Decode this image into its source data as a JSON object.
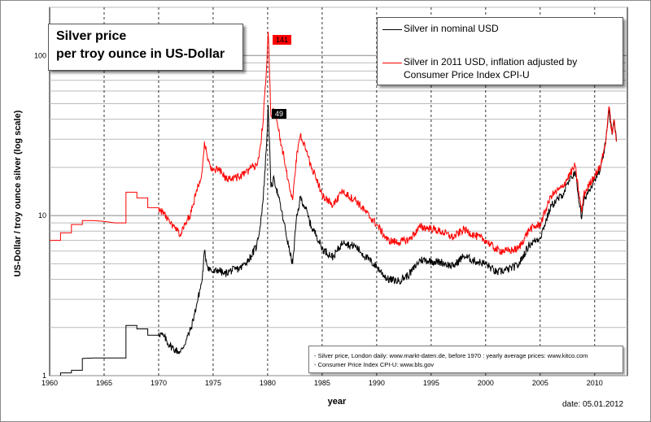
{
  "title": {
    "line1": "Silver price",
    "line2": "per troy ounce in US-Dollar"
  },
  "legend": [
    {
      "label": "Silver in nominal USD",
      "color": "#000000"
    },
    {
      "label_line1": "Silver in 2011 USD, inflation adjusted by",
      "label_line2": "Consumer Price Index CPI-U",
      "color": "#ff0000"
    }
  ],
  "sources": [
    "- Silver price, London daily: www.markt-daten.de,  before 1970 :  yearly  average prices: www.kitco.com",
    "- Consumer Price Index CPI-U: www.bls.gov"
  ],
  "date_note": "date:  05.01.2012",
  "peak_labels": {
    "inflation_adjusted": "141",
    "nominal": "49"
  },
  "chart_data": {
    "type": "line",
    "xlabel": "year",
    "ylabel": "US-Dollar / troy ounce silver (log scale)",
    "xlim": [
      1960,
      2013
    ],
    "ylim": [
      1,
      200
    ],
    "y_scale": "log",
    "x_ticks": [
      1960,
      1965,
      1970,
      1975,
      1980,
      1985,
      1990,
      1995,
      2000,
      2005,
      2010
    ],
    "y_ticks": [
      1,
      10,
      100
    ],
    "grid": true,
    "legend_position": "top-right",
    "series": [
      {
        "name": "Silver in nominal USD",
        "color": "#000000",
        "points": [
          [
            1960,
            0.91
          ],
          [
            1961,
            0.92
          ],
          [
            1961,
            1.04
          ],
          [
            1962,
            1.04
          ],
          [
            1962,
            1.08
          ],
          [
            1963,
            1.08
          ],
          [
            1963,
            1.28
          ],
          [
            1964,
            1.29
          ],
          [
            1965,
            1.29
          ],
          [
            1966,
            1.29
          ],
          [
            1967,
            1.29
          ],
          [
            1967,
            2.06
          ],
          [
            1968,
            2.06
          ],
          [
            1968,
            1.96
          ],
          [
            1969,
            1.96
          ],
          [
            1969,
            1.79
          ],
          [
            1970,
            1.79
          ],
          [
            1970,
            1.85
          ],
          [
            1970.5,
            1.75
          ],
          [
            1971,
            1.55
          ],
          [
            1971.5,
            1.45
          ],
          [
            1972,
            1.4
          ],
          [
            1972.5,
            1.65
          ],
          [
            1973,
            2.0
          ],
          [
            1973.5,
            2.8
          ],
          [
            1974,
            4.0
          ],
          [
            1974.2,
            6.0
          ],
          [
            1974.5,
            4.8
          ],
          [
            1975,
            4.4
          ],
          [
            1975.5,
            4.6
          ],
          [
            1976,
            4.3
          ],
          [
            1976.5,
            4.5
          ],
          [
            1977,
            4.6
          ],
          [
            1977.5,
            4.7
          ],
          [
            1978,
            5.1
          ],
          [
            1978.5,
            5.6
          ],
          [
            1979,
            6.5
          ],
          [
            1979.3,
            8.5
          ],
          [
            1979.6,
            13.0
          ],
          [
            1979.9,
            28.0
          ],
          [
            1980.05,
            49.0
          ],
          [
            1980.3,
            15.0
          ],
          [
            1980.6,
            17.0
          ],
          [
            1981,
            13.0
          ],
          [
            1981.5,
            9.0
          ],
          [
            1982,
            6.0
          ],
          [
            1982.3,
            5.0
          ],
          [
            1982.6,
            9.0
          ],
          [
            1983,
            13.0
          ],
          [
            1983.5,
            11.0
          ],
          [
            1984,
            8.5
          ],
          [
            1984.5,
            7.5
          ],
          [
            1985,
            6.2
          ],
          [
            1986,
            5.5
          ],
          [
            1987,
            7.0
          ],
          [
            1987.5,
            6.5
          ],
          [
            1988,
            6.5
          ],
          [
            1989,
            5.5
          ],
          [
            1990,
            4.8
          ],
          [
            1991,
            4.0
          ],
          [
            1992,
            3.9
          ],
          [
            1993,
            4.3
          ],
          [
            1994,
            5.3
          ],
          [
            1995,
            5.2
          ],
          [
            1996,
            5.1
          ],
          [
            1997,
            4.8
          ],
          [
            1998,
            5.6
          ],
          [
            1999,
            5.2
          ],
          [
            2000,
            5.0
          ],
          [
            2001,
            4.4
          ],
          [
            2002,
            4.6
          ],
          [
            2003,
            4.9
          ],
          [
            2004,
            6.6
          ],
          [
            2005,
            7.3
          ],
          [
            2006,
            11.5
          ],
          [
            2007,
            13.4
          ],
          [
            2008.2,
            19.0
          ],
          [
            2008.8,
            9.5
          ],
          [
            2009,
            12.5
          ],
          [
            2010,
            17.0
          ],
          [
            2010.5,
            19.0
          ],
          [
            2011,
            28.0
          ],
          [
            2011.3,
            47.0
          ],
          [
            2011.6,
            32.0
          ],
          [
            2011.8,
            39.0
          ],
          [
            2012,
            29.0
          ]
        ]
      },
      {
        "name": "Silver in 2011 USD, inflation adjusted by Consumer Price Index CPI-U",
        "color": "#ff0000",
        "points": [
          [
            1960,
            7.0
          ],
          [
            1961,
            7.0
          ],
          [
            1961,
            7.8
          ],
          [
            1962,
            7.8
          ],
          [
            1962,
            8.8
          ],
          [
            1963,
            8.8
          ],
          [
            1963,
            9.3
          ],
          [
            1964,
            9.3
          ],
          [
            1965,
            9.2
          ],
          [
            1966,
            9.0
          ],
          [
            1967,
            9.0
          ],
          [
            1967,
            14.0
          ],
          [
            1968,
            14.0
          ],
          [
            1968,
            12.9
          ],
          [
            1969,
            12.9
          ],
          [
            1969,
            11.2
          ],
          [
            1970,
            11.2
          ],
          [
            1970,
            11.0
          ],
          [
            1970.5,
            10.3
          ],
          [
            1971,
            9.0
          ],
          [
            1971.5,
            8.3
          ],
          [
            1972,
            7.6
          ],
          [
            1972.5,
            9.0
          ],
          [
            1973,
            10.5
          ],
          [
            1973.5,
            14.5
          ],
          [
            1974,
            19.0
          ],
          [
            1974.2,
            29.0
          ],
          [
            1974.5,
            22.0
          ],
          [
            1975,
            19.0
          ],
          [
            1975.5,
            19.5
          ],
          [
            1976,
            17.5
          ],
          [
            1976.5,
            17.0
          ],
          [
            1977,
            17.3
          ],
          [
            1977.5,
            17.5
          ],
          [
            1978,
            18.5
          ],
          [
            1978.5,
            20.0
          ],
          [
            1979,
            20.5
          ],
          [
            1979.3,
            26.0
          ],
          [
            1979.6,
            40.0
          ],
          [
            1979.9,
            85.0
          ],
          [
            1980.05,
            141.0
          ],
          [
            1980.3,
            42.0
          ],
          [
            1980.6,
            46.0
          ],
          [
            1981,
            34.0
          ],
          [
            1981.5,
            23.0
          ],
          [
            1982,
            15.0
          ],
          [
            1982.3,
            12.5
          ],
          [
            1982.6,
            22.0
          ],
          [
            1983,
            32.0
          ],
          [
            1983.5,
            26.0
          ],
          [
            1984,
            20.0
          ],
          [
            1984.5,
            17.0
          ],
          [
            1985,
            13.5
          ],
          [
            1986,
            11.5
          ],
          [
            1987,
            14.5
          ],
          [
            1987.5,
            13.0
          ],
          [
            1988,
            12.7
          ],
          [
            1989,
            10.5
          ],
          [
            1990,
            8.8
          ],
          [
            1991,
            7.0
          ],
          [
            1992,
            6.8
          ],
          [
            1993,
            7.1
          ],
          [
            1994,
            8.5
          ],
          [
            1995,
            8.3
          ],
          [
            1996,
            7.9
          ],
          [
            1997,
            7.3
          ],
          [
            1998,
            8.2
          ],
          [
            1999,
            7.5
          ],
          [
            2000,
            7.0
          ],
          [
            2001,
            6.1
          ],
          [
            2002,
            6.0
          ],
          [
            2003,
            6.2
          ],
          [
            2004,
            8.2
          ],
          [
            2005,
            8.8
          ],
          [
            2006,
            13.3
          ],
          [
            2007,
            15.0
          ],
          [
            2008.2,
            20.5
          ],
          [
            2008.8,
            10.5
          ],
          [
            2009,
            13.5
          ],
          [
            2010,
            18.0
          ],
          [
            2010.5,
            20.0
          ],
          [
            2011,
            28.5
          ],
          [
            2011.3,
            48.0
          ],
          [
            2011.6,
            32.5
          ],
          [
            2011.8,
            39.5
          ],
          [
            2012,
            29.0
          ]
        ]
      }
    ]
  }
}
